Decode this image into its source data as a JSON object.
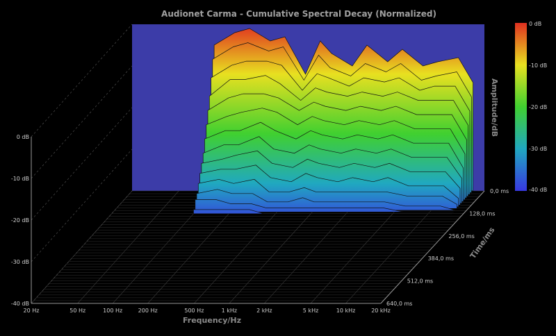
{
  "chart_data": {
    "type": "waterfall",
    "title": "Audionet Carma - Cumulative Spectral Decay (Normalized)",
    "xlabel": "Frequency/Hz",
    "ylabel": "Amplitude/dB",
    "zlabel": "Time/ms",
    "x_scale": "log",
    "xlim": [
      20,
      20000
    ],
    "ylim": [
      -40,
      0
    ],
    "x_ticks": [
      20,
      50,
      100,
      200,
      500,
      1000,
      2000,
      5000,
      10000,
      20000
    ],
    "x_tick_labels": [
      "20 Hz",
      "50 Hz",
      "100 Hz",
      "200 Hz",
      "500 Hz",
      "1 kHz",
      "2 kHz",
      "5 kHz",
      "10 kHz",
      "20 kHz"
    ],
    "y_ticks": [
      0,
      -10,
      -20,
      -30,
      -40
    ],
    "y_tick_labels": [
      "0 dB",
      "-10 dB",
      "-20 dB",
      "-30 dB",
      "-40 dB"
    ],
    "time_ticks": [
      0,
      128,
      256,
      384,
      512,
      640
    ],
    "time_tick_labels": [
      "0,0 ms",
      "128,0 ms",
      "256,0 ms",
      "384,0 ms",
      "512,0 ms",
      "640,0 ms"
    ],
    "colorbar": {
      "labels": [
        "0 dB",
        "-10 dB",
        "-20 dB",
        "-30 dB",
        "-40 dB"
      ],
      "colors": [
        "#e03020",
        "#e8e020",
        "#40d030",
        "#20a8c0",
        "#3838e0"
      ]
    },
    "slice_times_ms": [
      0,
      10,
      20,
      30,
      40,
      50,
      60,
      70,
      80,
      90,
      100,
      110,
      120,
      130
    ],
    "slice_freq_hz": [
      100,
      150,
      200,
      300,
      400,
      600,
      800,
      1000,
      1500,
      2000,
      3000,
      4000,
      6000,
      8000,
      12000,
      16000
    ],
    "series": [
      {
        "values": [
          -5,
          -2,
          -1,
          -4,
          -3,
          -12,
          -4,
          -7,
          -10,
          -5,
          -9,
          -6,
          -10,
          -9,
          -8,
          -14
        ]
      },
      {
        "values": [
          -8,
          -5,
          -4,
          -6,
          -5,
          -13,
          -7,
          -10,
          -12,
          -9,
          -11,
          -9,
          -13,
          -12,
          -11,
          -17
        ]
      },
      {
        "values": [
          -12,
          -9,
          -8,
          -8,
          -9,
          -15,
          -11,
          -12,
          -14,
          -12,
          -13,
          -12,
          -15,
          -14,
          -14,
          -20
        ]
      },
      {
        "values": [
          -16,
          -12,
          -12,
          -11,
          -13,
          -17,
          -14,
          -15,
          -16,
          -15,
          -16,
          -15,
          -17,
          -17,
          -17,
          -23
        ]
      },
      {
        "values": [
          -19,
          -16,
          -15,
          -15,
          -16,
          -19,
          -17,
          -18,
          -19,
          -18,
          -19,
          -18,
          -20,
          -20,
          -20,
          -26
        ]
      },
      {
        "values": [
          -22,
          -20,
          -19,
          -18,
          -19,
          -22,
          -20,
          -21,
          -22,
          -21,
          -22,
          -21,
          -23,
          -23,
          -23,
          -29
        ]
      },
      {
        "values": [
          -25,
          -23,
          -23,
          -21,
          -23,
          -25,
          -23,
          -24,
          -25,
          -24,
          -25,
          -24,
          -26,
          -26,
          -26,
          -32
        ]
      },
      {
        "values": [
          -28,
          -26,
          -26,
          -24,
          -27,
          -28,
          -26,
          -27,
          -28,
          -27,
          -28,
          -27,
          -29,
          -29,
          -29,
          -34
        ]
      },
      {
        "values": [
          -30,
          -29,
          -28,
          -27,
          -30,
          -31,
          -29,
          -30,
          -31,
          -30,
          -31,
          -30,
          -32,
          -32,
          -32,
          -36
        ]
      },
      {
        "values": [
          -32,
          -31,
          -31,
          -30,
          -33,
          -34,
          -32,
          -33,
          -34,
          -33,
          -34,
          -33,
          -35,
          -35,
          -35,
          -38
        ]
      },
      {
        "values": [
          -34,
          -33,
          -34,
          -33,
          -36,
          -36,
          -35,
          -36,
          -36,
          -36,
          -36,
          -36,
          -37,
          -37,
          -37,
          -39
        ]
      },
      {
        "values": [
          -36,
          -35,
          -36,
          -36,
          -38,
          -38,
          -37,
          -38,
          -38,
          -38,
          -38,
          -38,
          -39,
          -39,
          -39,
          -40
        ]
      },
      {
        "values": [
          -37,
          -37,
          -38,
          -38,
          -39,
          -39,
          -39,
          -39,
          -39,
          -39,
          -39,
          -39,
          -40,
          -40,
          -40,
          -40
        ]
      },
      {
        "values": [
          -39,
          -39,
          -39,
          -39,
          -40,
          -40,
          -40,
          -40,
          -40,
          -40,
          -40,
          -40,
          -40,
          -40,
          -40,
          -40
        ]
      }
    ]
  }
}
